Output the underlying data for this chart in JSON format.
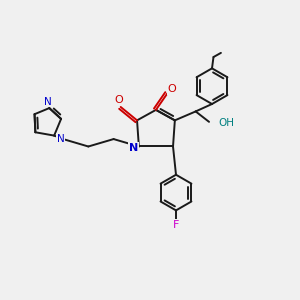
{
  "background_color": "#f0f0f0",
  "bond_color": "#1a1a1a",
  "nitrogen_color": "#0000cc",
  "oxygen_color": "#cc0000",
  "fluorine_color": "#cc00cc",
  "hydroxyl_color": "#008080",
  "line_width": 1.4,
  "fig_width": 3.0,
  "fig_height": 3.0,
  "dpi": 100,
  "xlim": [
    0,
    10
  ],
  "ylim": [
    0,
    10
  ]
}
